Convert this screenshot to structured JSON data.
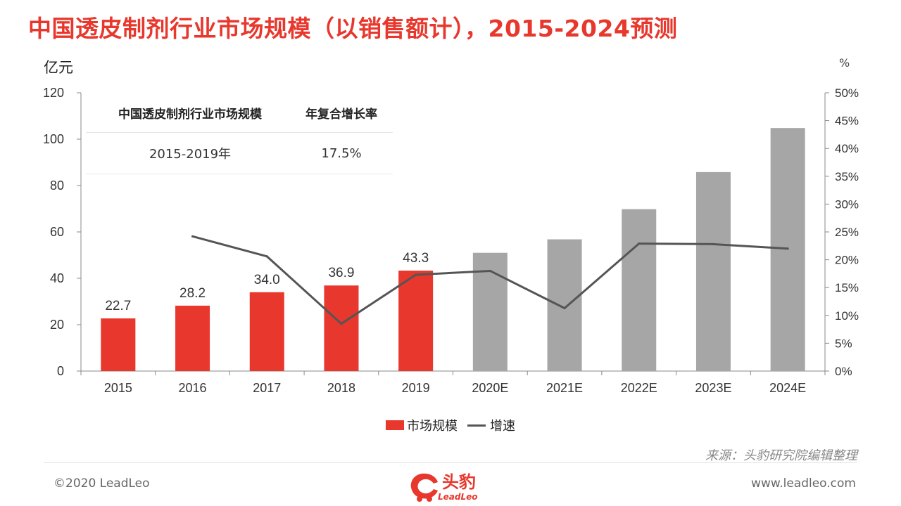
{
  "title": "中国透皮制剂行业市场规模（以销售额计），2015-2024预测",
  "unit_left": "亿元",
  "unit_right": "%",
  "cagr_table": {
    "header": [
      "中国透皮制剂行业市场规模",
      "年复合增长率"
    ],
    "row": [
      "2015-2019年",
      "17.5%"
    ]
  },
  "legend": {
    "bar_label": "市场规模",
    "line_label": "增速"
  },
  "source": "来源：头豹研究院编辑整理",
  "footer": {
    "copyright": "©2020 LeadLeo",
    "website": "www.leadleo.com"
  },
  "logo": {
    "cn": "头豹",
    "en": "LeadLeo"
  },
  "colors": {
    "actual": "#e8372c",
    "forecast": "#a6a6a6",
    "line": "#555555",
    "title": "#e8372c"
  },
  "chart_data": {
    "type": "bar",
    "categories": [
      "2015",
      "2016",
      "2017",
      "2018",
      "2019",
      "2020E",
      "2021E",
      "2022E",
      "2023E",
      "2024E"
    ],
    "series": [
      {
        "name": "市场规模",
        "type": "bar",
        "axis": "left",
        "values": [
          22.7,
          28.2,
          34.0,
          36.9,
          43.3,
          51.0,
          56.8,
          69.8,
          85.8,
          104.8
        ],
        "labels": [
          "22.7",
          "28.2",
          "34.0",
          "36.9",
          "43.3",
          "",
          "",
          "",
          "",
          ""
        ],
        "color_by_point": [
          "actual",
          "actual",
          "actual",
          "actual",
          "actual",
          "forecast",
          "forecast",
          "forecast",
          "forecast",
          "forecast"
        ]
      },
      {
        "name": "增速",
        "type": "line",
        "axis": "right",
        "values": [
          null,
          24.2,
          20.6,
          8.5,
          17.3,
          18.0,
          11.3,
          22.9,
          22.8,
          22.0
        ]
      }
    ],
    "y_left": {
      "min": 0,
      "max": 120,
      "ticks": [
        "0",
        "20",
        "40",
        "60",
        "80",
        "100",
        "120"
      ]
    },
    "y_right": {
      "min": 0,
      "max": 50,
      "ticks": [
        "0%",
        "5%",
        "10%",
        "15%",
        "20%",
        "25%",
        "30%",
        "35%",
        "40%",
        "45%",
        "50%"
      ]
    },
    "grid": false,
    "legend_position": "bottom"
  }
}
